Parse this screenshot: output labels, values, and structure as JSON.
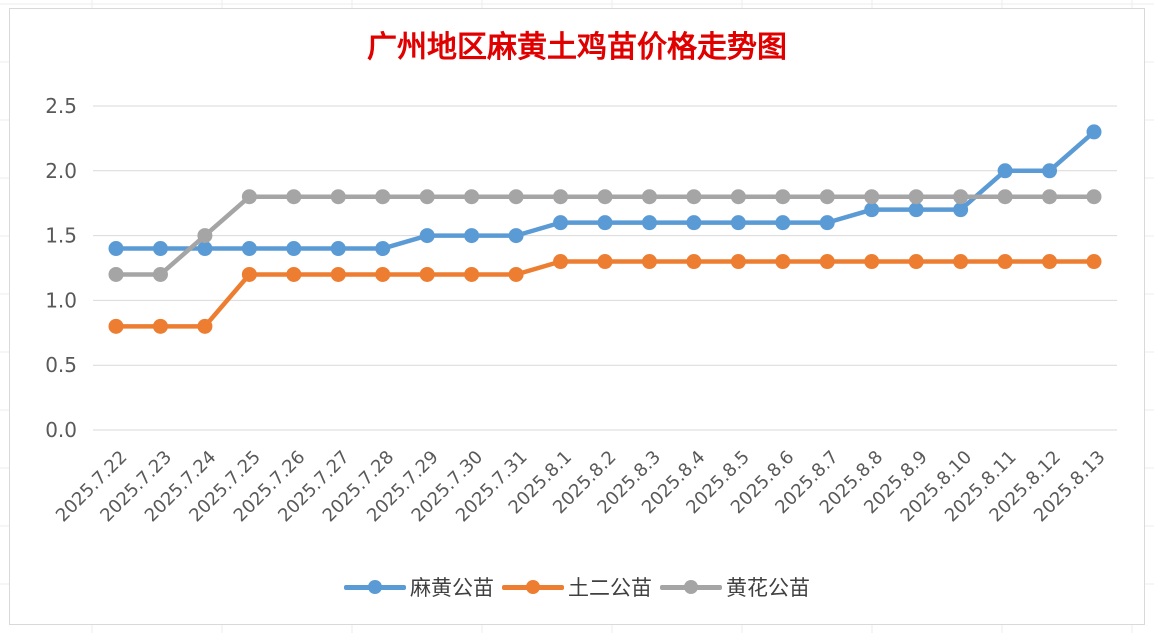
{
  "chart_data": {
    "type": "line",
    "title": "广州地区麻黄土鸡苗价格走势图",
    "xlabel": "",
    "ylabel": "",
    "categories": [
      "2025.7.22",
      "2025.7.23",
      "2025.7.24",
      "2025.7.25",
      "2025.7.26",
      "2025.7.27",
      "2025.7.28",
      "2025.7.29",
      "2025.7.30",
      "2025.7.31",
      "2025.8.1",
      "2025.8.2",
      "2025.8.3",
      "2025.8.4",
      "2025.8.5",
      "2025.8.6",
      "2025.8.7",
      "2025.8.8",
      "2025.8.9",
      "2025.8.10",
      "2025.8.11",
      "2025.8.12",
      "2025.8.13"
    ],
    "ylim": [
      0,
      2.5
    ],
    "yticks": [
      "0.0",
      "0.5",
      "1.0",
      "1.5",
      "2.0",
      "2.5"
    ],
    "grid": true,
    "legend_position": "bottom",
    "series": [
      {
        "name": "麻黄公苗",
        "color": "#5b9bd5",
        "values": [
          1.4,
          1.4,
          1.4,
          1.4,
          1.4,
          1.4,
          1.4,
          1.5,
          1.5,
          1.5,
          1.6,
          1.6,
          1.6,
          1.6,
          1.6,
          1.6,
          1.6,
          1.7,
          1.7,
          1.7,
          2.0,
          2.0,
          2.3
        ]
      },
      {
        "name": "土二公苗",
        "color": "#ed7d31",
        "values": [
          0.8,
          0.8,
          0.8,
          1.2,
          1.2,
          1.2,
          1.2,
          1.2,
          1.2,
          1.2,
          1.3,
          1.3,
          1.3,
          1.3,
          1.3,
          1.3,
          1.3,
          1.3,
          1.3,
          1.3,
          1.3,
          1.3,
          1.3
        ]
      },
      {
        "name": "黄花公苗",
        "color": "#a5a5a5",
        "values": [
          1.2,
          1.2,
          1.5,
          1.8,
          1.8,
          1.8,
          1.8,
          1.8,
          1.8,
          1.8,
          1.8,
          1.8,
          1.8,
          1.8,
          1.8,
          1.8,
          1.8,
          1.8,
          1.8,
          1.8,
          1.8,
          1.8,
          1.8
        ]
      }
    ]
  }
}
